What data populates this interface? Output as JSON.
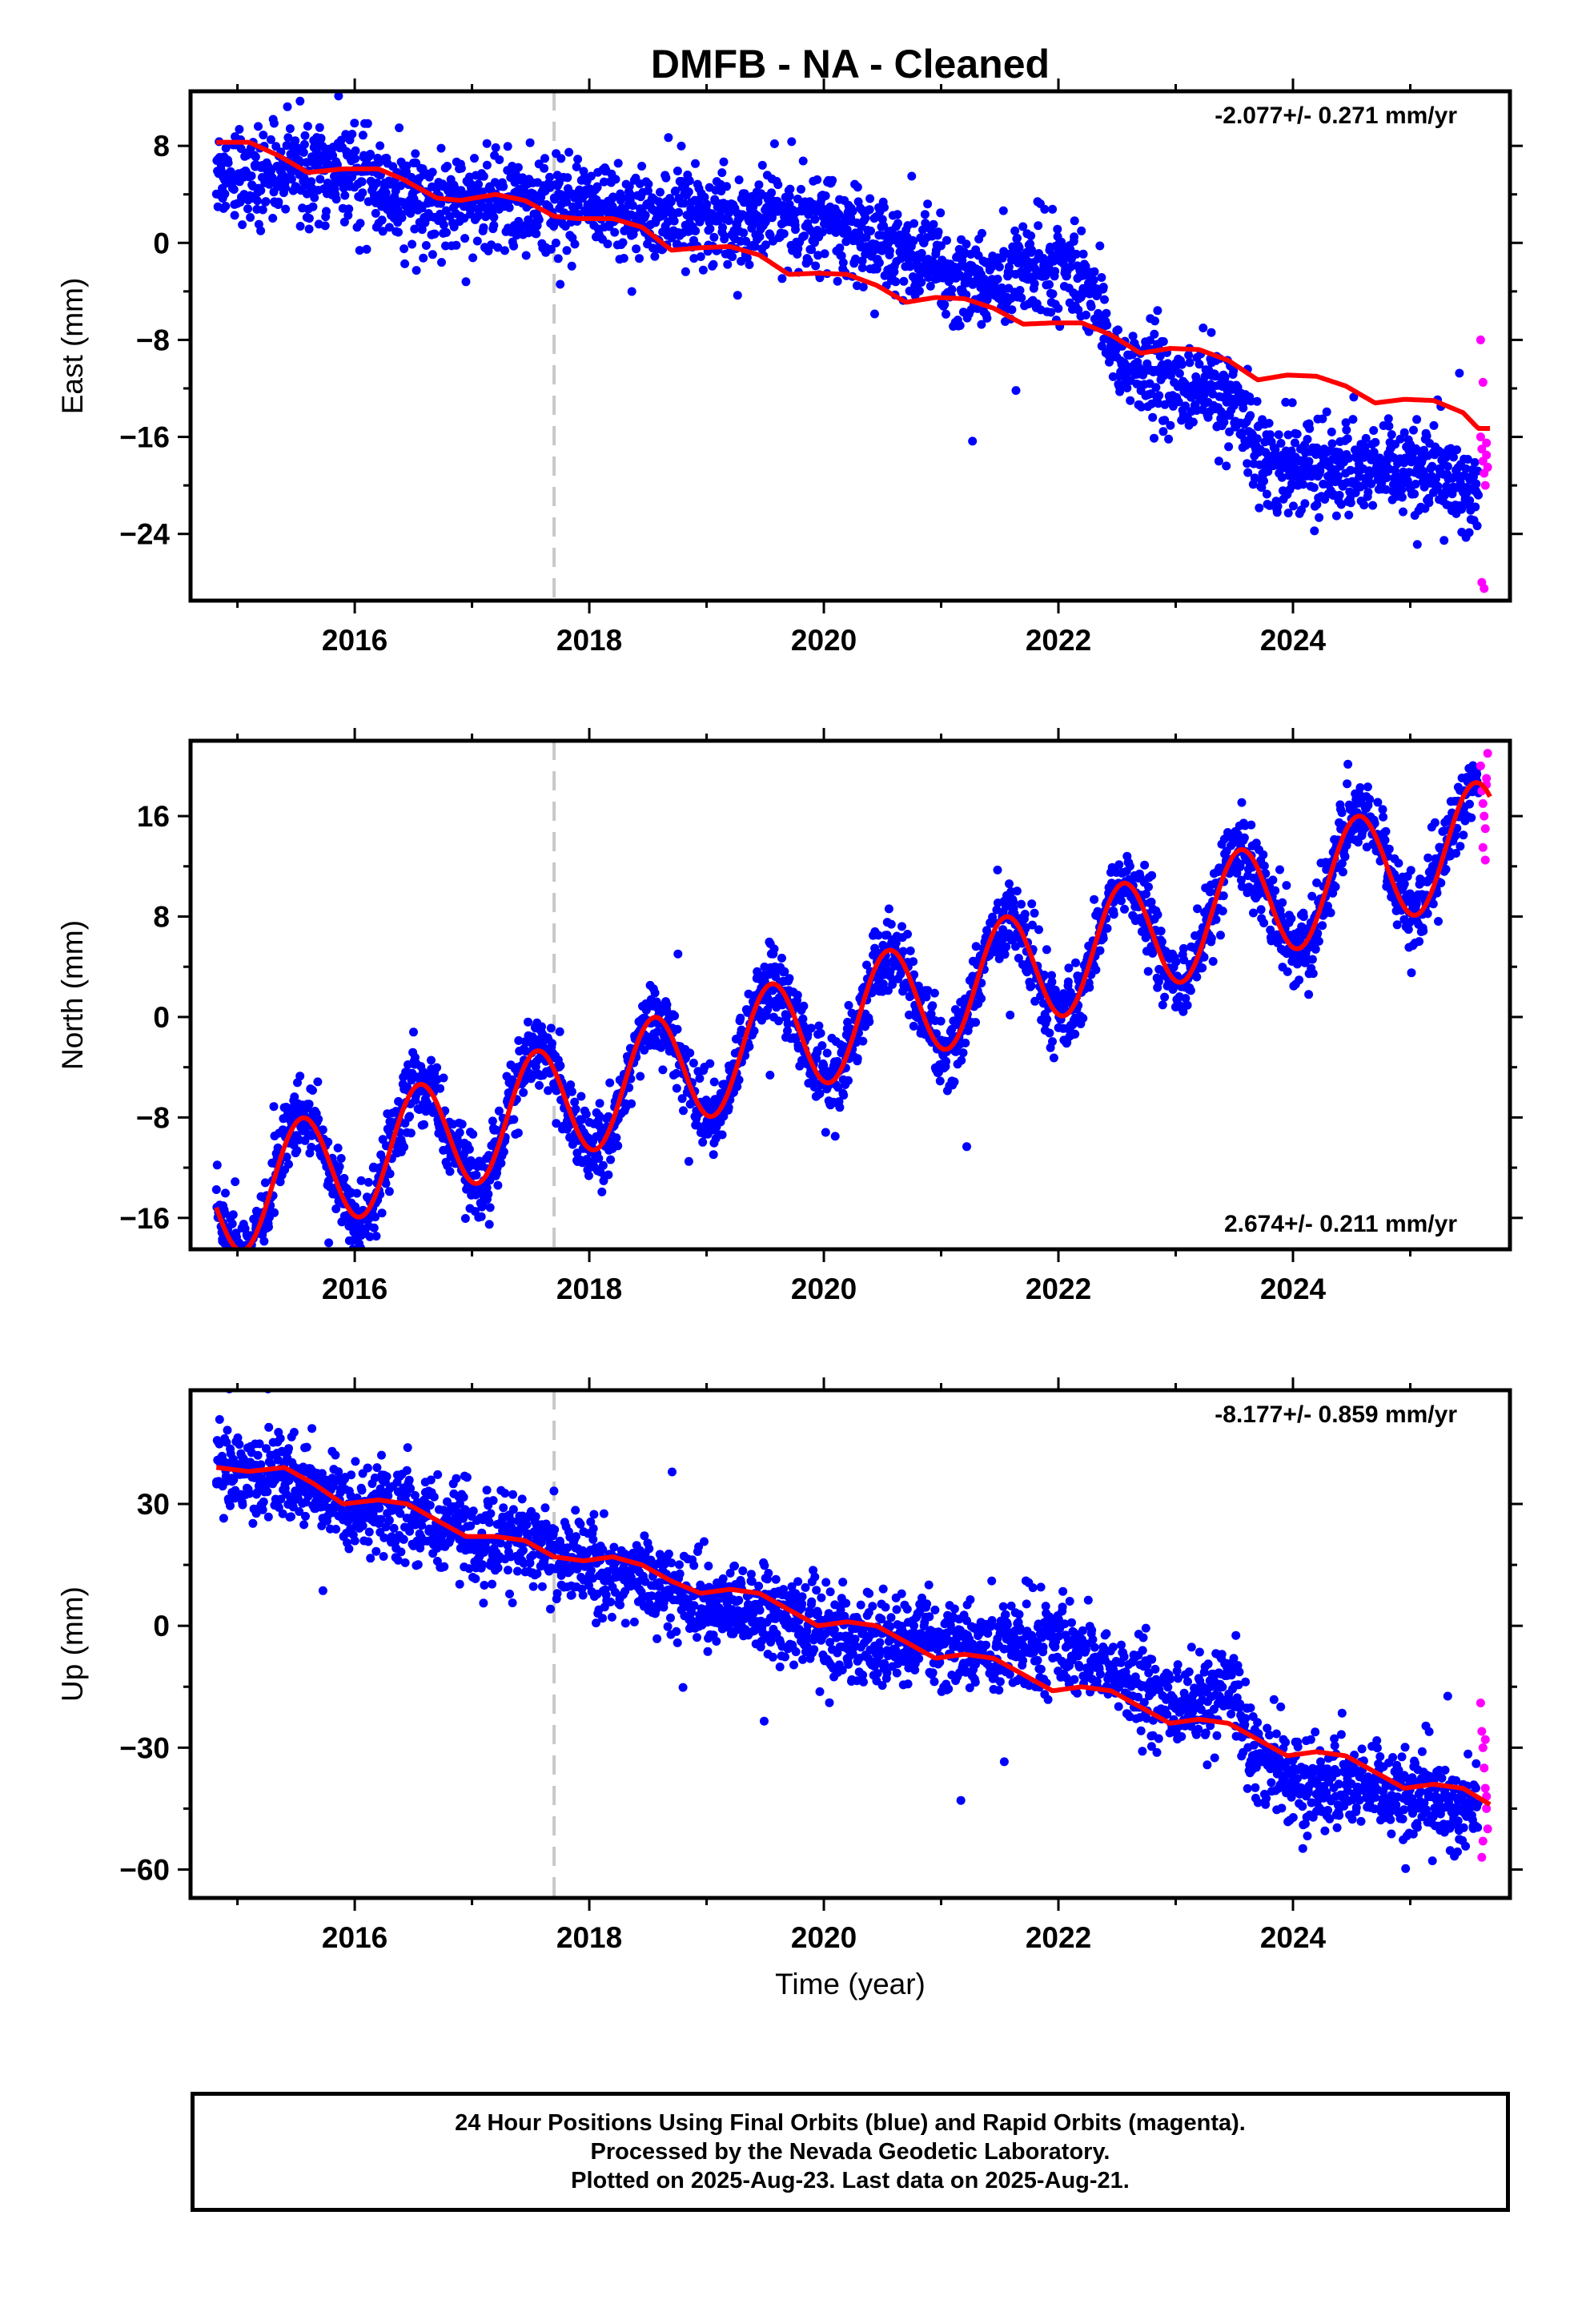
{
  "title": "DMFB  - NA - Cleaned",
  "footer": {
    "line1": "24 Hour Positions Using Final Orbits (blue) and Rapid Orbits (magenta).",
    "line2": "Processed by the Nevada Geodetic Laboratory.",
    "line3": "Plotted on 2025-Aug-23. Last data on 2025-Aug-21."
  },
  "colors": {
    "final": "#0000ff",
    "rapid": "#ff00ff",
    "model": "#ff0000",
    "event_line": "#c8c8c8"
  },
  "chart_data": [
    {
      "type": "scatter",
      "component": "east",
      "ylabel": "East (mm)",
      "xlabel": "",
      "rate_label": "-2.077+/- 0.271 mm/yr",
      "rate_position": "top-right",
      "xlim": [
        2014.6,
        2025.85
      ],
      "ylim": [
        -29.5,
        12.5
      ],
      "xticks": [
        2016,
        2018,
        2020,
        2022,
        2024
      ],
      "yticks": [
        8,
        0,
        -8,
        -16,
        -24
      ],
      "event_line_x": 2017.7,
      "data_knots": [
        [
          2014.82,
          6
        ],
        [
          2015.0,
          6
        ],
        [
          2015.2,
          5
        ],
        [
          2015.5,
          6
        ],
        [
          2015.8,
          6
        ],
        [
          2016.0,
          6
        ],
        [
          2016.3,
          4
        ],
        [
          2016.7,
          3
        ],
        [
          2017.0,
          3.5
        ],
        [
          2017.4,
          3
        ],
        [
          2017.8,
          3
        ],
        [
          2018.1,
          3
        ],
        [
          2018.4,
          2
        ],
        [
          2018.7,
          2
        ],
        [
          2019.0,
          2
        ],
        [
          2019.4,
          2
        ],
        [
          2019.8,
          2
        ],
        [
          2020.1,
          2
        ],
        [
          2020.3,
          1
        ],
        [
          2020.6,
          -1
        ],
        [
          2020.9,
          -2
        ],
        [
          2021.2,
          -3
        ],
        [
          2021.5,
          -3
        ],
        [
          2021.7,
          -2
        ],
        [
          2022.0,
          -2
        ],
        [
          2022.2,
          -3
        ],
        [
          2022.35,
          -5
        ],
        [
          2022.5,
          -10
        ],
        [
          2022.8,
          -11
        ],
        [
          2023.0,
          -12
        ],
        [
          2023.3,
          -12
        ],
        [
          2023.6,
          -15
        ],
        [
          2023.9,
          -19
        ],
        [
          2024.2,
          -18
        ],
        [
          2024.5,
          -19
        ],
        [
          2024.8,
          -19
        ],
        [
          2025.1,
          -19
        ],
        [
          2025.4,
          -20
        ],
        [
          2025.58,
          -20
        ]
      ],
      "data_spread": 1.9,
      "model_knots": [
        [
          2014.82,
          8.3
        ],
        [
          2015.1,
          8.3
        ],
        [
          2015.35,
          7.2
        ],
        [
          2015.6,
          5.8
        ],
        [
          2015.9,
          6.1
        ],
        [
          2016.2,
          6.1
        ],
        [
          2016.4,
          5.3
        ],
        [
          2016.7,
          3.7
        ],
        [
          2016.9,
          3.5
        ],
        [
          2017.2,
          4.0
        ],
        [
          2017.45,
          3.5
        ],
        [
          2017.7,
          2.2
        ],
        [
          2017.9,
          2.0
        ],
        [
          2018.2,
          2.0
        ],
        [
          2018.45,
          1.3
        ],
        [
          2018.7,
          -0.6
        ],
        [
          2018.95,
          -0.4
        ],
        [
          2019.2,
          -0.3
        ],
        [
          2019.45,
          -1.0
        ],
        [
          2019.7,
          -2.6
        ],
        [
          2019.95,
          -2.5
        ],
        [
          2020.2,
          -2.6
        ],
        [
          2020.45,
          -3.5
        ],
        [
          2020.7,
          -4.9
        ],
        [
          2020.95,
          -4.5
        ],
        [
          2021.2,
          -4.6
        ],
        [
          2021.45,
          -5.4
        ],
        [
          2021.7,
          -6.7
        ],
        [
          2021.95,
          -6.6
        ],
        [
          2022.2,
          -6.6
        ],
        [
          2022.45,
          -7.6
        ],
        [
          2022.7,
          -9.1
        ],
        [
          2022.95,
          -8.7
        ],
        [
          2023.2,
          -8.8
        ],
        [
          2023.45,
          -9.7
        ],
        [
          2023.7,
          -11.3
        ],
        [
          2023.95,
          -10.9
        ],
        [
          2024.2,
          -11.0
        ],
        [
          2024.45,
          -11.8
        ],
        [
          2024.7,
          -13.2
        ],
        [
          2024.95,
          -12.9
        ],
        [
          2025.2,
          -13.0
        ],
        [
          2025.45,
          -14.0
        ],
        [
          2025.58,
          -15.3
        ],
        [
          2025.68,
          -15.3
        ]
      ],
      "model_amp": 0,
      "rapid_points": [
        [
          2025.6,
          -16
        ],
        [
          2025.61,
          -17
        ],
        [
          2025.62,
          -18
        ],
        [
          2025.63,
          -19
        ],
        [
          2025.64,
          -20
        ],
        [
          2025.65,
          -17.5
        ],
        [
          2025.66,
          -18.5
        ],
        [
          2025.6,
          -8
        ],
        [
          2025.62,
          -11.5
        ],
        [
          2025.61,
          -28
        ],
        [
          2025.63,
          -28.5
        ],
        [
          2025.65,
          -16.5
        ]
      ]
    },
    {
      "type": "scatter",
      "component": "north",
      "ylabel": "North (mm)",
      "xlabel": "",
      "rate_label": "2.674+/- 0.211 mm/yr",
      "rate_position": "bottom-right",
      "xlim": [
        2014.6,
        2025.85
      ],
      "ylim": [
        -18.5,
        22
      ],
      "xticks": [
        2016,
        2018,
        2020,
        2022,
        2024
      ],
      "yticks": [
        16,
        8,
        0,
        -8,
        -16
      ],
      "event_line_x": 2017.7,
      "data_knots": [
        [
          2014.82,
          -14.6
        ],
        [
          2025.68,
          14.4
        ]
      ],
      "data_spread": 1.5,
      "model_knots": [
        [
          2014.82,
          -14.6
        ],
        [
          2025.68,
          14.4
        ]
      ],
      "model_amp": 4.6,
      "rapid_points": [
        [
          2025.6,
          20
        ],
        [
          2025.61,
          18
        ],
        [
          2025.62,
          17
        ],
        [
          2025.63,
          16
        ],
        [
          2025.64,
          15
        ],
        [
          2025.65,
          19
        ],
        [
          2025.66,
          21
        ],
        [
          2025.62,
          13.5
        ],
        [
          2025.64,
          12.5
        ],
        [
          2025.65,
          18.5
        ]
      ]
    },
    {
      "type": "scatter",
      "component": "up",
      "ylabel": "Up (mm)",
      "xlabel": "Time (year)",
      "rate_label": "-8.177+/- 0.859 mm/yr",
      "rate_position": "top-right",
      "xlim": [
        2014.6,
        2025.85
      ],
      "ylim": [
        -67,
        58
      ],
      "xticks": [
        2016,
        2018,
        2020,
        2022,
        2024
      ],
      "yticks": [
        30,
        0,
        -30,
        -60
      ],
      "event_line_x": 2017.7,
      "data_knots": [
        [
          2014.82,
          40
        ],
        [
          2015.5,
          35
        ],
        [
          2016.0,
          30
        ],
        [
          2016.5,
          27
        ],
        [
          2017.0,
          22
        ],
        [
          2017.5,
          20
        ],
        [
          2018.0,
          15
        ],
        [
          2018.5,
          12
        ],
        [
          2019.0,
          5
        ],
        [
          2019.5,
          3
        ],
        [
          2020.0,
          -2
        ],
        [
          2020.5,
          -3
        ],
        [
          2021.0,
          -4
        ],
        [
          2021.5,
          -5
        ],
        [
          2022.0,
          -4
        ],
        [
          2022.4,
          -10
        ],
        [
          2022.8,
          -18
        ],
        [
          2023.2,
          -20
        ],
        [
          2023.5,
          -15
        ],
        [
          2023.7,
          -32
        ],
        [
          2024.0,
          -38
        ],
        [
          2024.5,
          -40
        ],
        [
          2025.0,
          -43
        ],
        [
          2025.58,
          -45
        ]
      ],
      "data_spread": 5.5,
      "model_knots": [
        [
          2014.82,
          39
        ],
        [
          2015.1,
          38
        ],
        [
          2015.4,
          39
        ],
        [
          2015.65,
          35
        ],
        [
          2015.9,
          30
        ],
        [
          2016.2,
          31
        ],
        [
          2016.45,
          30
        ],
        [
          2016.7,
          26
        ],
        [
          2016.95,
          22
        ],
        [
          2017.2,
          22
        ],
        [
          2017.45,
          21
        ],
        [
          2017.7,
          17
        ],
        [
          2017.95,
          16
        ],
        [
          2018.2,
          17
        ],
        [
          2018.45,
          15
        ],
        [
          2018.7,
          11
        ],
        [
          2018.95,
          8
        ],
        [
          2019.2,
          9
        ],
        [
          2019.45,
          8
        ],
        [
          2019.7,
          4
        ],
        [
          2019.95,
          0
        ],
        [
          2020.2,
          1
        ],
        [
          2020.45,
          0
        ],
        [
          2020.7,
          -4
        ],
        [
          2020.95,
          -8
        ],
        [
          2021.2,
          -7
        ],
        [
          2021.45,
          -8
        ],
        [
          2021.7,
          -12
        ],
        [
          2021.95,
          -16
        ],
        [
          2022.2,
          -15
        ],
        [
          2022.45,
          -16
        ],
        [
          2022.7,
          -20
        ],
        [
          2022.95,
          -24
        ],
        [
          2023.2,
          -23
        ],
        [
          2023.45,
          -24
        ],
        [
          2023.7,
          -28
        ],
        [
          2023.95,
          -32
        ],
        [
          2024.2,
          -31
        ],
        [
          2024.45,
          -32
        ],
        [
          2024.7,
          -36
        ],
        [
          2024.95,
          -40
        ],
        [
          2025.2,
          -39
        ],
        [
          2025.45,
          -40
        ],
        [
          2025.68,
          -44
        ]
      ],
      "model_amp": 0,
      "rapid_points": [
        [
          2025.6,
          -19
        ],
        [
          2025.61,
          -26
        ],
        [
          2025.62,
          -30
        ],
        [
          2025.63,
          -35
        ],
        [
          2025.64,
          -40
        ],
        [
          2025.65,
          -45
        ],
        [
          2025.66,
          -50
        ],
        [
          2025.61,
          -57
        ],
        [
          2025.62,
          -53
        ],
        [
          2025.64,
          -28
        ],
        [
          2025.65,
          -42
        ]
      ]
    }
  ]
}
